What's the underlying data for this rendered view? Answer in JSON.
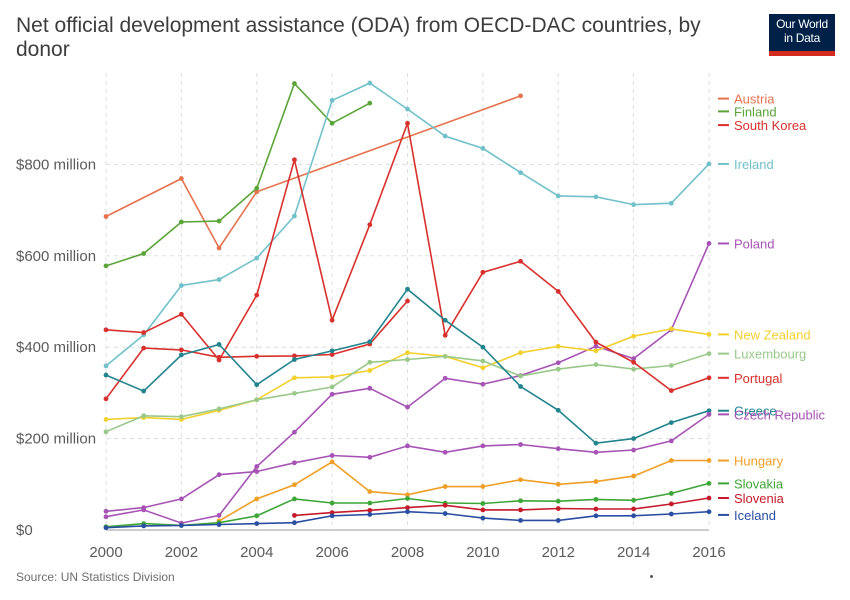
{
  "title": "Net official development assistance (ODA) from OECD-DAC countries, by donor",
  "logo": {
    "line1": "Our World",
    "line2": "in Data"
  },
  "source": "Source: UN Statistics Division",
  "chart_data": {
    "type": "line",
    "title": "Net official development assistance (ODA) from OECD-DAC countries, by donor",
    "xlabel": "",
    "ylabel": "",
    "xlim": [
      2000,
      2016
    ],
    "ylim": [
      0,
      1000
    ],
    "x_ticks": [
      2000,
      2002,
      2004,
      2006,
      2008,
      2010,
      2012,
      2014,
      2016
    ],
    "y_ticks": [
      {
        "value": 0,
        "label": "$0"
      },
      {
        "value": 200,
        "label": "$200 million"
      },
      {
        "value": 400,
        "label": "$400 million"
      },
      {
        "value": 600,
        "label": "$600 million"
      },
      {
        "value": 800,
        "label": "$800 million"
      }
    ],
    "grid": true,
    "legend_placement": "right",
    "series": [
      {
        "name": "Austria",
        "color": "#e5734e",
        "label_y": 944,
        "points": [
          [
            2000,
            686
          ],
          [
            2002,
            769
          ],
          [
            2003,
            617
          ],
          [
            2004,
            740
          ],
          [
            2011,
            950
          ]
        ]
      },
      {
        "name": "Finland",
        "color": "#5aa537",
        "label_y": 916,
        "points": [
          [
            2000,
            578
          ],
          [
            2001,
            605
          ],
          [
            2002,
            674
          ],
          [
            2003,
            676
          ],
          [
            2004,
            748
          ],
          [
            2005,
            977
          ],
          [
            2006,
            890
          ],
          [
            2007,
            934
          ]
        ]
      },
      {
        "name": "South Korea",
        "color": "#d8302c",
        "label_y": 886,
        "points": [
          [
            2000,
            287
          ],
          [
            2001,
            398
          ],
          [
            2002,
            394
          ],
          [
            2003,
            378
          ],
          [
            2004,
            380
          ],
          [
            2005,
            381
          ],
          [
            2006,
            384
          ],
          [
            2007,
            407
          ],
          [
            2008,
            501
          ]
        ]
      },
      {
        "name": "Ireland",
        "color": "#71c1cb",
        "label_y": 801,
        "points": [
          [
            2000,
            359
          ],
          [
            2001,
            427
          ],
          [
            2002,
            535
          ],
          [
            2003,
            548
          ],
          [
            2004,
            595
          ],
          [
            2005,
            687
          ],
          [
            2006,
            940
          ],
          [
            2007,
            978
          ],
          [
            2008,
            921
          ],
          [
            2009,
            862
          ],
          [
            2010,
            835
          ],
          [
            2011,
            782
          ],
          [
            2012,
            731
          ],
          [
            2013,
            729
          ],
          [
            2014,
            712
          ],
          [
            2015,
            715
          ],
          [
            2016,
            801
          ]
        ]
      },
      {
        "name": "Poland",
        "color": "#a653b5",
        "label_y": 627,
        "points": [
          [
            2000,
            29
          ],
          [
            2001,
            44
          ],
          [
            2002,
            15
          ],
          [
            2003,
            32
          ],
          [
            2004,
            139
          ],
          [
            2005,
            214
          ],
          [
            2006,
            297
          ],
          [
            2007,
            310
          ],
          [
            2008,
            269
          ],
          [
            2009,
            332
          ],
          [
            2010,
            319
          ],
          [
            2011,
            338
          ],
          [
            2012,
            366
          ],
          [
            2013,
            402
          ],
          [
            2014,
            375
          ],
          [
            2015,
            438
          ],
          [
            2016,
            627
          ]
        ]
      },
      {
        "name": "New Zealand",
        "color": "#f2d02e",
        "label_y": 428,
        "points": [
          [
            2000,
            242
          ],
          [
            2001,
            246
          ],
          [
            2002,
            242
          ],
          [
            2003,
            262
          ],
          [
            2004,
            285
          ],
          [
            2005,
            333
          ],
          [
            2006,
            335
          ],
          [
            2007,
            349
          ],
          [
            2008,
            388
          ],
          [
            2009,
            380
          ],
          [
            2010,
            355
          ],
          [
            2011,
            388
          ],
          [
            2012,
            402
          ],
          [
            2013,
            392
          ],
          [
            2014,
            424
          ],
          [
            2015,
            440
          ],
          [
            2016,
            428
          ]
        ]
      },
      {
        "name": "Luxembourg",
        "color": "#99c989",
        "label_y": 386,
        "points": [
          [
            2000,
            215
          ],
          [
            2001,
            250
          ],
          [
            2002,
            248
          ],
          [
            2003,
            265
          ],
          [
            2004,
            285
          ],
          [
            2005,
            299
          ],
          [
            2006,
            313
          ],
          [
            2007,
            367
          ],
          [
            2008,
            373
          ],
          [
            2009,
            380
          ],
          [
            2010,
            370
          ],
          [
            2011,
            337
          ],
          [
            2012,
            352
          ],
          [
            2013,
            362
          ],
          [
            2014,
            352
          ],
          [
            2015,
            360
          ],
          [
            2016,
            386
          ]
        ]
      },
      {
        "name": "Portugal",
        "color": "#d8302c",
        "label_y": 333,
        "points": [
          [
            2000,
            438
          ],
          [
            2001,
            432
          ],
          [
            2002,
            472
          ],
          [
            2003,
            372
          ],
          [
            2004,
            514
          ],
          [
            2005,
            810
          ],
          [
            2006,
            459
          ],
          [
            2007,
            668
          ],
          [
            2008,
            890
          ],
          [
            2009,
            426
          ],
          [
            2010,
            564
          ],
          [
            2011,
            588
          ],
          [
            2012,
            522
          ],
          [
            2013,
            411
          ],
          [
            2014,
            367
          ],
          [
            2015,
            305
          ],
          [
            2016,
            333
          ]
        ]
      },
      {
        "name": "Greece",
        "color": "#22848e",
        "label_y": 261,
        "points": [
          [
            2000,
            339
          ],
          [
            2001,
            304
          ],
          [
            2002,
            383
          ],
          [
            2003,
            406
          ],
          [
            2004,
            318
          ],
          [
            2005,
            373
          ],
          [
            2006,
            392
          ],
          [
            2007,
            412
          ],
          [
            2008,
            527
          ],
          [
            2009,
            459
          ],
          [
            2010,
            400
          ],
          [
            2011,
            314
          ],
          [
            2012,
            262
          ],
          [
            2013,
            190
          ],
          [
            2014,
            200
          ],
          [
            2015,
            235
          ],
          [
            2016,
            261
          ]
        ]
      },
      {
        "name": "Czech Republic",
        "color": "#a653b5",
        "label_y": 253,
        "points": [
          [
            2000,
            41
          ],
          [
            2001,
            49
          ],
          [
            2002,
            68
          ],
          [
            2003,
            121
          ],
          [
            2004,
            128
          ],
          [
            2005,
            147
          ],
          [
            2006,
            163
          ],
          [
            2007,
            159
          ],
          [
            2008,
            184
          ],
          [
            2009,
            170
          ],
          [
            2010,
            184
          ],
          [
            2011,
            187
          ],
          [
            2012,
            178
          ],
          [
            2013,
            170
          ],
          [
            2014,
            175
          ],
          [
            2015,
            195
          ],
          [
            2016,
            253
          ]
        ]
      },
      {
        "name": "Hungary",
        "color": "#f09f26",
        "label_y": 152,
        "points": [
          [
            2003,
            20
          ],
          [
            2004,
            68
          ],
          [
            2005,
            99
          ],
          [
            2006,
            149
          ],
          [
            2007,
            84
          ],
          [
            2008,
            77
          ],
          [
            2009,
            95
          ],
          [
            2010,
            95
          ],
          [
            2011,
            110
          ],
          [
            2012,
            100
          ],
          [
            2013,
            106
          ],
          [
            2014,
            118
          ],
          [
            2015,
            152
          ],
          [
            2016,
            152
          ]
        ]
      },
      {
        "name": "Slovakia",
        "color": "#3da637",
        "label_y": 102,
        "points": [
          [
            2000,
            7
          ],
          [
            2001,
            14
          ],
          [
            2002,
            10
          ],
          [
            2003,
            16
          ],
          [
            2004,
            31
          ],
          [
            2005,
            68
          ],
          [
            2006,
            59
          ],
          [
            2007,
            59
          ],
          [
            2008,
            69
          ],
          [
            2009,
            59
          ],
          [
            2010,
            58
          ],
          [
            2011,
            64
          ],
          [
            2012,
            63
          ],
          [
            2013,
            67
          ],
          [
            2014,
            65
          ],
          [
            2015,
            80
          ],
          [
            2016,
            102
          ]
        ]
      },
      {
        "name": "Slovenia",
        "color": "#c41a2a",
        "label_y": 70,
        "points": [
          [
            2005,
            32
          ],
          [
            2006,
            38
          ],
          [
            2007,
            43
          ],
          [
            2008,
            49
          ],
          [
            2009,
            54
          ],
          [
            2010,
            44
          ],
          [
            2011,
            44
          ],
          [
            2012,
            47
          ],
          [
            2013,
            46
          ],
          [
            2014,
            46
          ],
          [
            2015,
            57
          ],
          [
            2016,
            70
          ]
        ]
      },
      {
        "name": "Iceland",
        "color": "#2a4ea1",
        "label_y": 33,
        "points": [
          [
            2000,
            5
          ],
          [
            2001,
            9
          ],
          [
            2002,
            10
          ],
          [
            2003,
            12
          ],
          [
            2004,
            14
          ],
          [
            2005,
            16
          ],
          [
            2006,
            31
          ],
          [
            2007,
            34
          ],
          [
            2008,
            40
          ],
          [
            2009,
            36
          ],
          [
            2010,
            26
          ],
          [
            2011,
            21
          ],
          [
            2012,
            21
          ],
          [
            2013,
            31
          ],
          [
            2014,
            31
          ],
          [
            2015,
            35
          ],
          [
            2016,
            40
          ]
        ]
      }
    ]
  }
}
